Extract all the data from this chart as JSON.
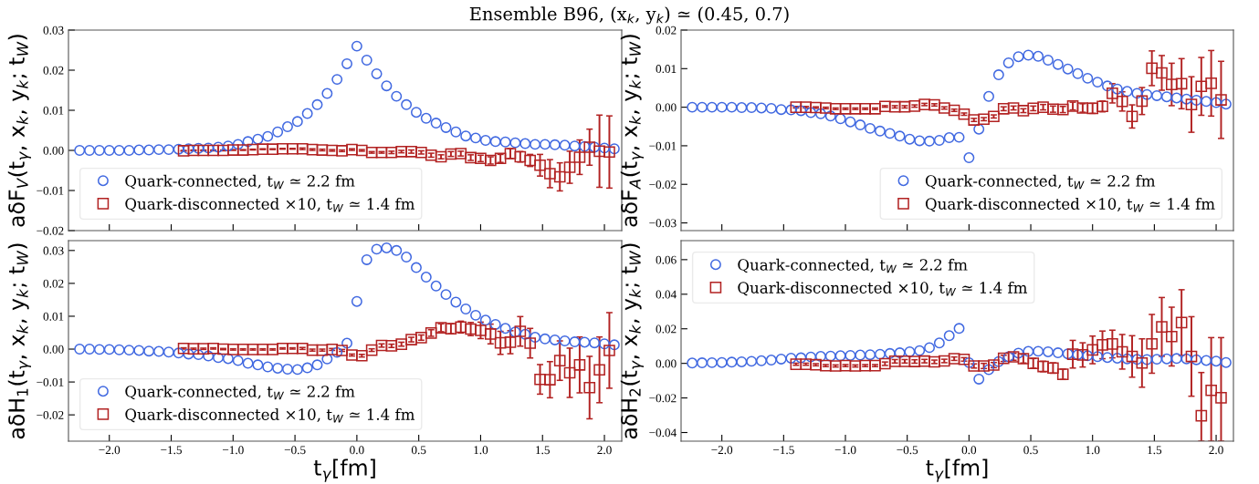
{
  "chart_data": [
    {
      "type": "scatter",
      "title": "Ensemble B96, (x$_{k}$, y$_{k}$) ≃ (0.45, 0.7)",
      "ylabel": "aδF$_{V}$(t$_{γ}$, x$_{k}$, y$_{k}$; t$_{W}$)",
      "legend": "bottom left",
      "tick_labels": "y",
      "xlim": [
        -2.33,
        2.14
      ],
      "ylim": [
        -0.02,
        0.03
      ],
      "xticks": [
        {
          "value": -2.0,
          "label": null
        },
        {
          "value": -1.5,
          "label": null
        },
        {
          "value": -1.0,
          "label": null
        },
        {
          "value": -0.5,
          "label": null
        },
        {
          "value": 0.0,
          "label": null
        },
        {
          "value": 0.5,
          "label": null
        },
        {
          "value": 1.0,
          "label": null
        },
        {
          "value": 1.5,
          "label": null
        },
        {
          "value": 2.0,
          "label": null
        }
      ],
      "yticks": [
        {
          "value": -0.02,
          "label": "−0.02"
        },
        {
          "value": -0.01,
          "label": "−0.01"
        },
        {
          "value": 0.0,
          "label": "0.00"
        },
        {
          "value": 0.01,
          "label": "0.01"
        },
        {
          "value": 0.02,
          "label": "0.02"
        },
        {
          "value": 0.03,
          "label": "0.03"
        }
      ],
      "x": [
        -2.24,
        -2.16,
        -2.08,
        -2.0,
        -1.92,
        -1.84,
        -1.76,
        -1.68,
        -1.6,
        -1.52,
        -1.44,
        -1.36,
        -1.28,
        -1.2,
        -1.12,
        -1.04,
        -0.96,
        -0.88,
        -0.8,
        -0.72,
        -0.64,
        -0.56,
        -0.48,
        -0.4,
        -0.32,
        -0.24,
        -0.16,
        -0.08,
        0,
        0.08,
        0.16,
        0.24,
        0.32,
        0.4,
        0.48,
        0.56,
        0.64,
        0.72,
        0.8,
        0.88,
        0.96,
        1.04,
        1.12,
        1.2,
        1.28,
        1.36,
        1.44,
        1.52,
        1.6,
        1.68,
        1.76,
        1.84,
        1.92,
        2.0,
        2.08
      ],
      "series": [
        {
          "name": "Quark-connected, t$_{W}$ ≃ 2.2 fm",
          "color": "#4169e1",
          "marker": "circle",
          "values": [
            0,
            0,
            0,
            0,
            0,
            0,
            0.0001,
            0.0001,
            0.0002,
            0.0002,
            0.0003,
            0.0004,
            0.0005,
            0.0006,
            0.0008,
            0.0011,
            0.0015,
            0.0022,
            0.0028,
            0.0035,
            0.0046,
            0.0059,
            0.0072,
            0.0092,
            0.0114,
            0.0142,
            0.0177,
            0.0216,
            0.026,
            0.0225,
            0.0191,
            0.0161,
            0.0135,
            0.0114,
            0.0095,
            0.008,
            0.0068,
            0.0057,
            0.0046,
            0.0036,
            0.0031,
            0.0025,
            0.0022,
            0.0021,
            0.0019,
            0.0017,
            0.0015,
            0.0015,
            0.0014,
            0.0013,
            0.0011,
            0.001,
            0.0008,
            0.0006,
            0.0004
          ]
        },
        {
          "name": "Quark-disconnected ×10, t$_{W}$ ≃ 1.4 fm",
          "color": "#b22222",
          "marker": "square",
          "x": [
            -1.4,
            -1.32,
            -1.24,
            -1.16,
            -1.08,
            -1.0,
            -0.92,
            -0.84,
            -0.76,
            -0.68,
            -0.6,
            -0.52,
            -0.44,
            -0.36,
            -0.28,
            -0.2,
            -0.12,
            -0.04,
            0.04,
            0.12,
            0.2,
            0.28,
            0.36,
            0.44,
            0.52,
            0.6,
            0.68,
            0.76,
            0.84,
            0.92,
            1.0,
            1.08,
            1.16,
            1.24,
            1.32,
            1.4,
            1.48,
            1.56,
            1.64,
            1.72,
            1.8,
            1.88,
            1.96,
            2.04
          ],
          "values": [
            -0.0001,
            0,
            0,
            0,
            0,
            0.0001,
            0.0001,
            0.0002,
            0.0003,
            0.0003,
            0.0004,
            0.0004,
            0.0004,
            0.0002,
            0.0001,
            0,
            -0.0001,
            0.0002,
            0,
            -0.0005,
            -0.0005,
            -0.0005,
            -0.0003,
            -0.0003,
            -0.0005,
            -0.0012,
            -0.0016,
            -0.0009,
            -0.0008,
            -0.0018,
            -0.002,
            -0.0025,
            -0.002,
            -0.0008,
            -0.0016,
            -0.0025,
            -0.0037,
            -0.0058,
            -0.0066,
            -0.0042,
            -0.0017,
            0.0008,
            -0.0002,
            -0.0004
          ],
          "errors": [
            0.0001,
            0.0001,
            0.0001,
            0.0001,
            0.0001,
            0.0001,
            0.0001,
            0.0001,
            0.0001,
            0.0001,
            0.0001,
            0.0001,
            0.0002,
            0.0002,
            0.0002,
            0.0002,
            0.0002,
            0.0002,
            0.0002,
            0.0002,
            0.0002,
            0.0003,
            0.0003,
            0.0004,
            0.0004,
            0.0005,
            0.0005,
            0.0006,
            0.0006,
            0.0007,
            0.0008,
            0.0009,
            0.001,
            0.0012,
            0.0013,
            0.0015,
            0.0027,
            0.0035,
            0.0035,
            0.004,
            0.0043,
            0.0045,
            0.009,
            0.009
          ]
        }
      ]
    },
    {
      "type": "scatter",
      "ylabel": "aδF$_{A}$(t$_{γ}$, x$_{k}$, y$_{k}$; t$_{W}$)",
      "legend": "bottom right",
      "tick_labels": "y",
      "xlim": [
        -2.33,
        2.14
      ],
      "ylim": [
        -0.032,
        0.02
      ],
      "xticks": [
        {
          "value": -2.0,
          "label": null
        },
        {
          "value": -1.5,
          "label": null
        },
        {
          "value": -1.0,
          "label": null
        },
        {
          "value": -0.5,
          "label": null
        },
        {
          "value": 0.0,
          "label": null
        },
        {
          "value": 0.5,
          "label": null
        },
        {
          "value": 1.0,
          "label": null
        },
        {
          "value": 1.5,
          "label": null
        },
        {
          "value": 2.0,
          "label": null
        }
      ],
      "yticks": [
        {
          "value": -0.03,
          "label": "−0.03"
        },
        {
          "value": -0.02,
          "label": "−0.02"
        },
        {
          "value": -0.01,
          "label": "−0.01"
        },
        {
          "value": 0.0,
          "label": "0.00"
        },
        {
          "value": 0.01,
          "label": "0.01"
        },
        {
          "value": 0.02,
          "label": "0.02"
        }
      ],
      "x": [
        -2.24,
        -2.16,
        -2.08,
        -2.0,
        -1.92,
        -1.84,
        -1.76,
        -1.68,
        -1.6,
        -1.52,
        -1.44,
        -1.36,
        -1.28,
        -1.2,
        -1.12,
        -1.04,
        -0.96,
        -0.88,
        -0.8,
        -0.72,
        -0.64,
        -0.56,
        -0.48,
        -0.4,
        -0.32,
        -0.24,
        -0.16,
        -0.08,
        0,
        0.08,
        0.16,
        0.24,
        0.32,
        0.4,
        0.48,
        0.56,
        0.64,
        0.72,
        0.8,
        0.88,
        0.96,
        1.04,
        1.12,
        1.2,
        1.28,
        1.36,
        1.44,
        1.52,
        1.6,
        1.68,
        1.76,
        1.84,
        1.92,
        2.0,
        2.08
      ],
      "series": [
        {
          "name": "Quark-connected, t$_{W}$ ≃ 2.2 fm",
          "color": "#4169e1",
          "marker": "circle",
          "values": [
            0,
            0,
            0,
            0,
            0,
            -0.0001,
            -0.0001,
            -0.0002,
            -0.0003,
            -0.0006,
            -0.0007,
            -0.0009,
            -0.0014,
            -0.0017,
            -0.0023,
            -0.003,
            -0.0038,
            -0.0046,
            -0.0055,
            -0.0062,
            -0.0068,
            -0.0075,
            -0.0083,
            -0.0087,
            -0.0088,
            -0.0086,
            -0.0079,
            -0.0078,
            -0.0131,
            -0.0057,
            0.0028,
            0.0084,
            0.0115,
            0.0131,
            0.0135,
            0.0132,
            0.0122,
            0.0111,
            0.0099,
            0.0087,
            0.0075,
            0.0065,
            0.0055,
            0.0047,
            0.0041,
            0.0036,
            0.0033,
            0.003,
            0.0027,
            0.0024,
            0.0021,
            0.0018,
            0.0015,
            0.0012,
            0.0008
          ]
        },
        {
          "name": "Quark-disconnected ×10, t$_{W}$ ≃ 1.4 fm",
          "color": "#b22222",
          "marker": "square",
          "x": [
            -1.4,
            -1.32,
            -1.24,
            -1.16,
            -1.08,
            -1.0,
            -0.92,
            -0.84,
            -0.76,
            -0.68,
            -0.6,
            -0.52,
            -0.44,
            -0.36,
            -0.28,
            -0.2,
            -0.12,
            -0.04,
            0.04,
            0.12,
            0.2,
            0.28,
            0.36,
            0.44,
            0.52,
            0.6,
            0.68,
            0.76,
            0.84,
            0.92,
            1.0,
            1.08,
            1.16,
            1.24,
            1.32,
            1.4,
            1.48,
            1.56,
            1.64,
            1.72,
            1.8,
            1.88,
            1.96,
            2.04
          ],
          "values": [
            0,
            0,
            -0.0001,
            -0.0002,
            -0.0004,
            -0.0004,
            -0.0004,
            -0.0004,
            -0.0004,
            0.0002,
            0.0001,
            0.0001,
            0.0003,
            0.0007,
            0.0006,
            -0.0002,
            -0.0008,
            -0.0018,
            -0.0033,
            -0.0031,
            -0.0024,
            -0.0004,
            -0.0002,
            -0.0009,
            -0.0003,
            0,
            -0.0005,
            -0.0006,
            0.0003,
            -0.0002,
            -0.0003,
            0.0002,
            0.0036,
            0.0015,
            -0.0024,
            0.0016,
            0.0101,
            0.0089,
            0.0059,
            0.0061,
            0.0007,
            0.0054,
            0.0062,
            0.0019
          ],
          "errors": [
            0.0002,
            0.0002,
            0.0002,
            0.0002,
            0.0002,
            0.0002,
            0.0002,
            0.0002,
            0.0002,
            0.0002,
            0.0003,
            0.0003,
            0.0003,
            0.0003,
            0.0003,
            0.0003,
            0.0003,
            0.0003,
            0.0004,
            0.0004,
            0.0004,
            0.0005,
            0.0005,
            0.0005,
            0.0006,
            0.0007,
            0.0008,
            0.0008,
            0.001,
            0.0011,
            0.0013,
            0.0014,
            0.0025,
            0.0025,
            0.003,
            0.0035,
            0.0045,
            0.0045,
            0.0055,
            0.0065,
            0.0072,
            0.0075,
            0.0085,
            0.01
          ]
        }
      ]
    },
    {
      "type": "scatter",
      "ylabel": "aδH$_{1}$(t$_{γ}$, x$_{k}$, y$_{k}$; t$_{W}$)",
      "xlabel": "t$_{γ}$[fm]",
      "legend": "bottom left",
      "xlim": [
        -2.33,
        2.14
      ],
      "ylim": [
        -0.028,
        0.033
      ],
      "xticks": [
        {
          "value": -2.0,
          "label": "−2.0"
        },
        {
          "value": -1.5,
          "label": "−1.5"
        },
        {
          "value": -1.0,
          "label": "−1.0"
        },
        {
          "value": -0.5,
          "label": "−0.5"
        },
        {
          "value": 0.0,
          "label": "0.0"
        },
        {
          "value": 0.5,
          "label": "0.5"
        },
        {
          "value": 1.0,
          "label": "1.0"
        },
        {
          "value": 1.5,
          "label": "1.5"
        },
        {
          "value": 2.0,
          "label": "2.0"
        }
      ],
      "yticks": [
        {
          "value": -0.02,
          "label": "−0.02"
        },
        {
          "value": -0.01,
          "label": "−0.01"
        },
        {
          "value": 0.0,
          "label": "0.00"
        },
        {
          "value": 0.01,
          "label": "0.01"
        },
        {
          "value": 0.02,
          "label": "0.02"
        },
        {
          "value": 0.03,
          "label": "0.03"
        }
      ],
      "x": [
        -2.24,
        -2.16,
        -2.08,
        -2.0,
        -1.92,
        -1.84,
        -1.76,
        -1.68,
        -1.6,
        -1.52,
        -1.44,
        -1.36,
        -1.28,
        -1.2,
        -1.12,
        -1.04,
        -0.96,
        -0.88,
        -0.8,
        -0.72,
        -0.64,
        -0.56,
        -0.48,
        -0.4,
        -0.32,
        -0.24,
        -0.16,
        -0.08,
        0,
        0.08,
        0.16,
        0.24,
        0.32,
        0.4,
        0.48,
        0.56,
        0.64,
        0.72,
        0.8,
        0.88,
        0.96,
        1.04,
        1.12,
        1.2,
        1.28,
        1.36,
        1.44,
        1.52,
        1.6,
        1.68,
        1.76,
        1.84,
        1.92,
        2.0,
        2.08
      ],
      "series": [
        {
          "name": "Quark-connected, t$_{W}$ ≃ 2.2 fm",
          "color": "#4169e1",
          "marker": "circle",
          "values": [
            0,
            0,
            -0.0001,
            -0.0001,
            -0.0002,
            -0.0003,
            -0.0004,
            -0.0006,
            -0.0007,
            -0.0009,
            -0.0012,
            -0.0015,
            -0.0017,
            -0.0021,
            -0.0026,
            -0.0029,
            -0.0035,
            -0.0043,
            -0.0048,
            -0.0054,
            -0.0058,
            -0.0061,
            -0.0062,
            -0.0057,
            -0.0048,
            -0.003,
            -0.001,
            0.0018,
            0.0145,
            0.0272,
            0.0304,
            0.0308,
            0.03,
            0.028,
            0.0248,
            0.0219,
            0.0192,
            0.0166,
            0.0143,
            0.0122,
            0.0103,
            0.0088,
            0.0075,
            0.0063,
            0.0052,
            0.0045,
            0.0036,
            0.0031,
            0.0028,
            0.0025,
            0.0022,
            0.0021,
            0.0019,
            0.0016,
            0.0013
          ]
        },
        {
          "name": "Quark-disconnected ×10, t$_{W}$ ≃ 1.4 fm",
          "color": "#b22222",
          "marker": "square",
          "x": [
            -1.4,
            -1.32,
            -1.24,
            -1.16,
            -1.08,
            -1.0,
            -0.92,
            -0.84,
            -0.76,
            -0.68,
            -0.6,
            -0.52,
            -0.44,
            -0.36,
            -0.28,
            -0.2,
            -0.12,
            -0.04,
            0.04,
            0.12,
            0.2,
            0.28,
            0.36,
            0.44,
            0.52,
            0.6,
            0.68,
            0.76,
            0.84,
            0.92,
            1.0,
            1.08,
            1.16,
            1.24,
            1.32,
            1.4,
            1.48,
            1.56,
            1.64,
            1.72,
            1.8,
            1.88,
            1.96,
            2.04
          ],
          "values": [
            0.0002,
            0.0001,
            0.0001,
            0.0002,
            0,
            -0.0001,
            -0.0001,
            -0.0001,
            -0.0001,
            -0.0001,
            0.0002,
            0.0002,
            0.0002,
            -0.0003,
            -0.0003,
            -0.0001,
            -0.0004,
            -0.0018,
            -0.002,
            -0.0003,
            0.0011,
            0.001,
            0.0015,
            0.0029,
            0.0035,
            0.0049,
            0.0065,
            0.0062,
            0.0067,
            0.0061,
            0.0057,
            0.0046,
            0.0019,
            0.0021,
            0.0054,
            0.0018,
            -0.0092,
            -0.0093,
            -0.0035,
            -0.0072,
            -0.0048,
            -0.0117,
            -0.0063,
            -0.0004
          ],
          "errors": [
            0.0002,
            0.0002,
            0.0002,
            0.0002,
            0.0002,
            0.0002,
            0.0002,
            0.0002,
            0.0002,
            0.0002,
            0.0002,
            0.0002,
            0.0003,
            0.0003,
            0.0003,
            0.0003,
            0.0003,
            0.0003,
            0.0004,
            0.0004,
            0.0005,
            0.0005,
            0.0006,
            0.0007,
            0.0008,
            0.001,
            0.0012,
            0.0015,
            0.0018,
            0.002,
            0.0025,
            0.003,
            0.0035,
            0.0035,
            0.0045,
            0.0045,
            0.0045,
            0.0055,
            0.006,
            0.0075,
            0.0085,
            0.0095,
            0.01,
            0.0115
          ]
        }
      ]
    },
    {
      "type": "scatter",
      "ylabel": "aδH$_{2}$(t$_{γ}$, x$_{k}$, y$_{k}$; t$_{W}$)",
      "xlabel": "t$_{γ}$[fm]",
      "legend": "top left",
      "xlim": [
        -2.33,
        2.14
      ],
      "ylim": [
        -0.045,
        0.071
      ],
      "xticks": [
        {
          "value": -2.0,
          "label": "−2.0"
        },
        {
          "value": -1.5,
          "label": "−1.5"
        },
        {
          "value": -1.0,
          "label": "−1.0"
        },
        {
          "value": -0.5,
          "label": "−0.5"
        },
        {
          "value": 0.0,
          "label": "0.0"
        },
        {
          "value": 0.5,
          "label": "0.5"
        },
        {
          "value": 1.0,
          "label": "1.0"
        },
        {
          "value": 1.5,
          "label": "1.5"
        },
        {
          "value": 2.0,
          "label": "2.0"
        }
      ],
      "yticks": [
        {
          "value": -0.04,
          "label": "−0.04"
        },
        {
          "value": -0.02,
          "label": "−0.02"
        },
        {
          "value": 0.0,
          "label": "0.00"
        },
        {
          "value": 0.02,
          "label": "0.02"
        },
        {
          "value": 0.04,
          "label": "0.04"
        },
        {
          "value": 0.06,
          "label": "0.06"
        }
      ],
      "x": [
        -2.24,
        -2.16,
        -2.08,
        -2.0,
        -1.92,
        -1.84,
        -1.76,
        -1.68,
        -1.6,
        -1.52,
        -1.44,
        -1.36,
        -1.28,
        -1.2,
        -1.12,
        -1.04,
        -0.96,
        -0.88,
        -0.8,
        -0.72,
        -0.64,
        -0.56,
        -0.48,
        -0.4,
        -0.32,
        -0.24,
        -0.16,
        -0.08,
        0,
        0.08,
        0.16,
        0.24,
        0.32,
        0.4,
        0.48,
        0.56,
        0.64,
        0.72,
        0.8,
        0.88,
        0.96,
        1.04,
        1.12,
        1.2,
        1.28,
        1.36,
        1.44,
        1.52,
        1.6,
        1.68,
        1.76,
        1.84,
        1.92,
        2.0,
        2.08
      ],
      "series": [
        {
          "name": "Quark-connected, t$_{W}$ ≃ 2.2 fm",
          "color": "#4169e1",
          "marker": "circle",
          "values": [
            0.0002,
            0.0003,
            0.0004,
            0.0005,
            0.0007,
            0.0009,
            0.0012,
            0.0015,
            0.0019,
            0.0025,
            0.003,
            0.0032,
            0.0037,
            0.004,
            0.0042,
            0.0044,
            0.0046,
            0.0048,
            0.005,
            0.0053,
            0.0057,
            0.0061,
            0.0067,
            0.0074,
            0.0091,
            0.0118,
            0.016,
            0.0202,
            0.0004,
            -0.0091,
            -0.0036,
            0.001,
            0.0038,
            0.0059,
            0.0069,
            0.007,
            0.0067,
            0.0061,
            0.0055,
            0.005,
            0.0044,
            0.0039,
            0.0034,
            0.003,
            0.0026,
            0.0023,
            0.0022,
            0.0024,
            0.0026,
            0.0028,
            0.0026,
            0.0021,
            0.0017,
            0.0013,
            0.0005
          ]
        },
        {
          "name": "Quark-disconnected ×10, t$_{W}$ ≃ 1.4 fm",
          "color": "#b22222",
          "marker": "square",
          "x": [
            -1.4,
            -1.32,
            -1.24,
            -1.16,
            -1.08,
            -1.0,
            -0.92,
            -0.84,
            -0.76,
            -0.68,
            -0.6,
            -0.52,
            -0.44,
            -0.36,
            -0.28,
            -0.2,
            -0.12,
            -0.04,
            0.04,
            0.12,
            0.2,
            0.28,
            0.36,
            0.44,
            0.52,
            0.6,
            0.68,
            0.76,
            0.84,
            0.92,
            1.0,
            1.08,
            1.16,
            1.24,
            1.32,
            1.4,
            1.48,
            1.56,
            1.64,
            1.72,
            1.8,
            1.88,
            1.96,
            2.04
          ],
          "values": [
            -0.0005,
            -0.0005,
            -0.0008,
            -0.0013,
            -0.0015,
            -0.0013,
            -0.0015,
            -0.0013,
            -0.0013,
            -0.0002,
            0.0012,
            0.0012,
            0.0011,
            0.0013,
            0.0009,
            0.0014,
            0.0027,
            0.0023,
            -0.0015,
            -0.0015,
            -0.001,
            0.0029,
            0.0038,
            0.0027,
            0,
            -0.0018,
            -0.0027,
            -0.0063,
            0.0053,
            0.0049,
            0.0078,
            0.0107,
            0.0112,
            0.0067,
            0.004,
            0.0002,
            0.0113,
            0.0211,
            0.0155,
            0.0236,
            0.004,
            -0.0303,
            -0.0156,
            -0.0199
          ],
          "errors": [
            0.0006,
            0.0006,
            0.0006,
            0.0006,
            0.0006,
            0.0006,
            0.0006,
            0.0006,
            0.0006,
            0.001,
            0.001,
            0.001,
            0.001,
            0.001,
            0.001,
            0.001,
            0.001,
            0.001,
            0.0012,
            0.0015,
            0.0015,
            0.0018,
            0.002,
            0.0025,
            0.0028,
            0.003,
            0.003,
            0.003,
            0.008,
            0.007,
            0.008,
            0.008,
            0.008,
            0.01,
            0.012,
            0.014,
            0.017,
            0.017,
            0.017,
            0.019,
            0.023,
            [
              -0.045,
              -0.0053
            ],
            [
              -0.045,
              0.0149
            ],
            [
              -0.045,
              0.0149
            ]
          ]
        }
      ]
    }
  ]
}
